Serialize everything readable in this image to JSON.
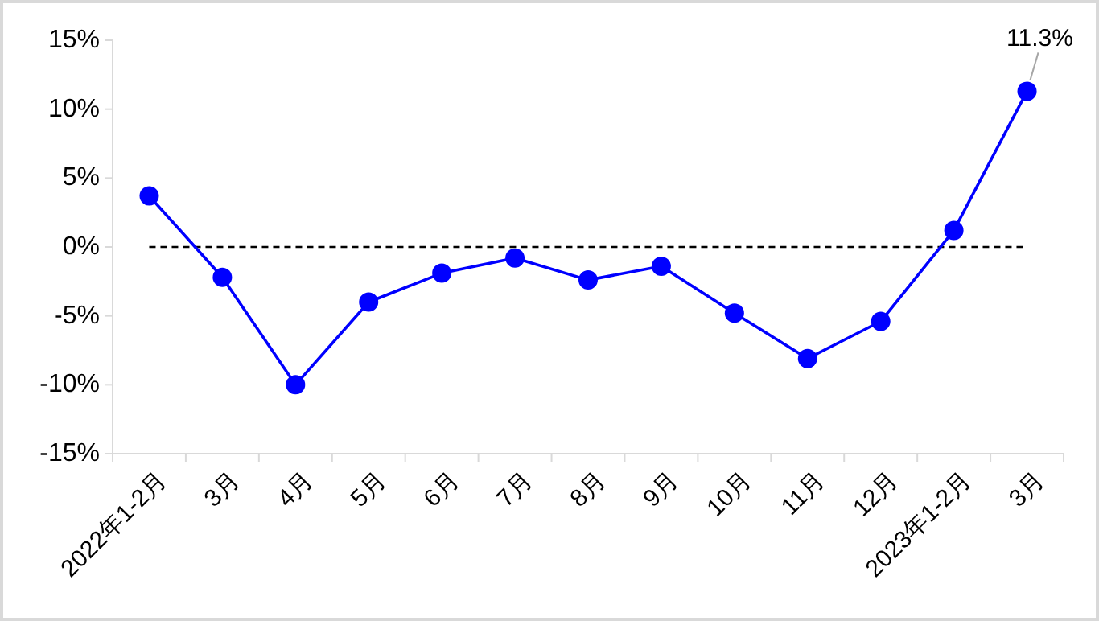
{
  "chart_data": {
    "type": "line",
    "categories": [
      "2022年1-2月",
      "3月",
      "4月",
      "5月",
      "6月",
      "7月",
      "8月",
      "9月",
      "10月",
      "11月",
      "12月",
      "2023年1-2月",
      "3月"
    ],
    "series": [
      {
        "color": "#0000ff",
        "values": [
          3.7,
          -2.2,
          -10.0,
          -4.0,
          -1.9,
          -0.8,
          -2.4,
          -1.4,
          -4.8,
          -8.1,
          -5.4,
          1.2,
          11.3
        ],
        "value_labels": [
          null,
          null,
          null,
          null,
          null,
          null,
          null,
          null,
          null,
          null,
          null,
          null,
          "11.3%"
        ]
      }
    ],
    "ylim": [
      -15,
      15
    ],
    "yticks": [
      {
        "value": -15,
        "label": "-15%"
      },
      {
        "value": -10,
        "label": "-10%"
      },
      {
        "value": -5,
        "label": "-5%"
      },
      {
        "value": 0,
        "label": "0%"
      },
      {
        "value": 5,
        "label": "5%"
      },
      {
        "value": 10,
        "label": "10%"
      },
      {
        "value": 15,
        "label": "15%"
      }
    ],
    "ref_lines": [
      {
        "axis": "y",
        "value": 0,
        "color": "#000000",
        "line_style": "dashed"
      }
    ],
    "marker": "circle",
    "line_style": "solid",
    "grid": false
  }
}
